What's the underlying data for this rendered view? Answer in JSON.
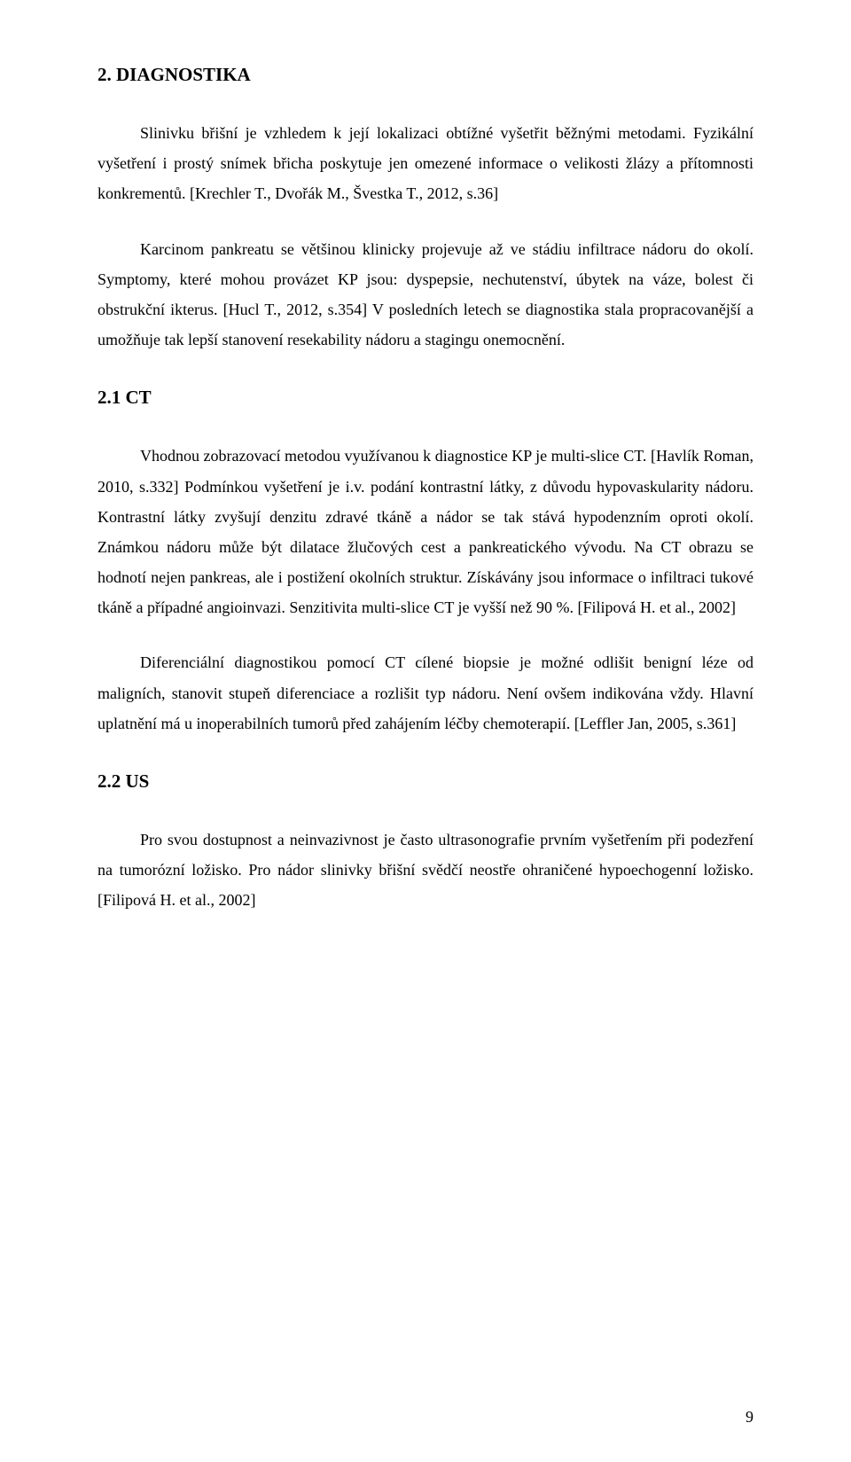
{
  "page_number": "9",
  "heading_main": "2. DIAGNOSTIKA",
  "para1": "Slinivku břišní je vzhledem k její lokalizaci obtížné vyšetřit běžnými metodami. Fyzikální vyšetření i prostý snímek břicha poskytuje jen omezené informace o velikosti žlázy a přítomnosti konkrementů. [Krechler T., Dvořák M., Švestka T., 2012, s.36]",
  "para2": "Karcinom pankreatu se většinou klinicky projevuje až ve stádiu infiltrace nádoru do okolí. Symptomy, které mohou provázet KP jsou: dyspepsie, nechutenství, úbytek na váze, bolest či obstrukční ikterus. [Hucl T., 2012, s.354] V posledních letech se diagnostika stala propracovanější a umožňuje tak lepší stanovení resekability nádoru a stagingu onemocnění.",
  "heading_ct": "2.1 CT",
  "para3": "Vhodnou zobrazovací metodou využívanou k diagnostice KP  je multi-slice CT. [Havlík Roman, 2010, s.332] Podmínkou vyšetření je i.v. podání kontrastní látky, z důvodu hypovaskularity nádoru. Kontrastní látky zvyšují denzitu zdravé tkáně a nádor se tak stává hypodenzním oproti okolí. Známkou nádoru může být dilatace žlučových cest a pankreatického vývodu. Na CT obrazu se hodnotí nejen pankreas, ale i postižení okolních struktur. Získávány jsou informace o infiltraci tukové tkáně a případné angioinvazi.  Senzitivita multi-slice CT je vyšší než 90 %. [Filipová H. et al., 2002]",
  "para4": "Diferenciální diagnostikou pomocí CT cílené biopsie je možné odlišit benigní léze od maligních, stanovit stupeň diferenciace a rozlišit typ nádoru. Není ovšem indikována vždy. Hlavní uplatnění má u inoperabilních tumorů před zahájením léčby chemoterapií. [Leffler Jan, 2005, s.361]",
  "heading_us": "2.2 US",
  "para5": "Pro svou dostupnost a  neinvazivnost je často ultrasonografie prvním vyšetřením při podezření na tumorózní ložisko. Pro nádor slinivky břišní svědčí neostře ohraničené hypoechogenní ložisko. [Filipová H. et al., 2002]"
}
